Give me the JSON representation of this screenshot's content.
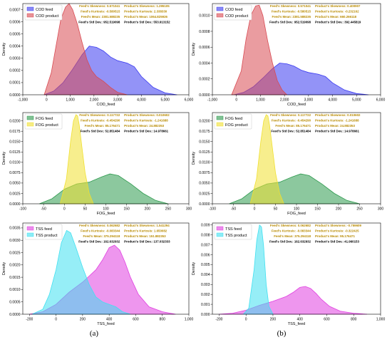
{
  "captions": [
    "(a)",
    "(b)"
  ],
  "chart_data": [
    {
      "type": "area",
      "xlabel": "COD_feed",
      "ylabel": "Density",
      "xlim": [
        -1000,
        6000
      ],
      "ylim": [
        0,
        0.00075
      ],
      "xticks": [
        -1000,
        0,
        1000,
        2000,
        3000,
        4000,
        5000,
        6000
      ],
      "xticklabels": [
        "-1,000",
        "0",
        "1,000",
        "2,000",
        "3,000",
        "4,000",
        "5,000",
        "6,000"
      ],
      "yticks": [
        0,
        0.0001,
        0.0002,
        0.0003,
        0.0004,
        0.0005,
        0.0006,
        0.0007
      ],
      "yticklabels": [
        "0.0000",
        "0.0001",
        "0.0002",
        "0.0003",
        "0.0004",
        "0.0005",
        "0.0006",
        "0.0007"
      ],
      "legend": "upper-left",
      "series": [
        {
          "name": "COD feed",
          "color": "#3a3af0",
          "x": [
            -100,
            300,
            700,
            1100,
            1500,
            1800,
            2100,
            2400,
            2700,
            3000,
            3400,
            3700,
            4000,
            4500,
            5000,
            5500
          ],
          "y": [
            0,
            3e-05,
            0.0001,
            0.00021,
            0.00033,
            0.0004,
            0.00039,
            0.00036,
            0.00031,
            0.00028,
            0.00026,
            0.00023,
            0.00015,
            6e-05,
            1.5e-05,
            0
          ]
        },
        {
          "name": "COD product",
          "color": "#d84a52",
          "x": [
            -100,
            200,
            400,
            600,
            800,
            950,
            1100,
            1300,
            1500,
            1700,
            1900,
            2100,
            2400,
            2700,
            3000,
            3400
          ],
          "y": [
            0,
            0.00018,
            0.0004,
            0.00062,
            0.00072,
            0.00075,
            0.0007,
            0.00058,
            0.00043,
            0.00029,
            0.0002,
            0.00015,
            0.00011,
            6e-05,
            2e-05,
            0
          ]
        }
      ],
      "stats": [
        {
          "feed": "Feed's Skewness: 0.571041",
          "product": "Product's Skewness: 1.295105"
        },
        {
          "feed": "Feed's Kurtosis: -0.580515",
          "product": "Product's Kurtosis: 2.338330"
        },
        {
          "feed": "Feed's Mean: 2381.588235",
          "product": "Product's Mean: 1064.825926"
        },
        {
          "feed": "Feed's Std Dev.: 952.519098",
          "product": "Product's Std Dev.: 553.913152"
        }
      ]
    },
    {
      "type": "area",
      "xlabel": "COD_feed",
      "ylabel": "Density",
      "xlim": [
        -1000,
        6000
      ],
      "ylim": [
        0,
        0.00115
      ],
      "xticks": [
        -1000,
        0,
        1000,
        2000,
        3000,
        4000,
        5000,
        6000
      ],
      "xticklabels": [
        "-1,000",
        "0",
        "1,000",
        "2,000",
        "3,000",
        "4,000",
        "5,000",
        "6,000"
      ],
      "yticks": [
        0,
        0.0002,
        0.0004,
        0.0006,
        0.0008,
        0.001
      ],
      "yticklabels": [
        "0.0000",
        "0.0002",
        "0.0004",
        "0.0006",
        "0.0008",
        "0.0010"
      ],
      "legend": "upper-left",
      "series": [
        {
          "name": "COD feed",
          "color": "#3a3af0",
          "x": [
            -100,
            300,
            700,
            1100,
            1500,
            1800,
            2100,
            2400,
            2700,
            3000,
            3400,
            3700,
            4000,
            4500,
            5000,
            5500
          ],
          "y": [
            0,
            3e-05,
            0.0001,
            0.00021,
            0.00033,
            0.0004,
            0.00039,
            0.00036,
            0.00031,
            0.00028,
            0.00026,
            0.00023,
            0.00015,
            6e-05,
            1.5e-05,
            0
          ]
        },
        {
          "name": "COD product",
          "color": "#d84a52",
          "x": [
            -200,
            200,
            400,
            600,
            800,
            950,
            1100,
            1300,
            1500,
            1700,
            1900,
            2100
          ],
          "y": [
            0,
            0.0003,
            0.0007,
            0.001,
            0.00112,
            0.00113,
            0.001,
            0.00068,
            0.0004,
            0.00018,
            6e-05,
            0
          ]
        }
      ],
      "stats": [
        {
          "feed": "Feed's Skewness: 0.571041",
          "product": "Product's Skewness: 0.400907"
        },
        {
          "feed": "Feed's Kurtosis: -0.580515",
          "product": "Product's Kurtosis: -0.232162"
        },
        {
          "feed": "Feed's Mean: 2381.588235",
          "product": "Product's Mean: 660.266118"
        },
        {
          "feed": "Feed's Std Dev.: 952.519098",
          "product": "Product's Std Dev.: 392.445819"
        }
      ]
    },
    {
      "type": "area",
      "xlabel": "FOG_feed",
      "ylabel": "Density",
      "xlim": [
        -100,
        300
      ],
      "ylim": [
        0,
        0.022
      ],
      "xticks": [
        -100,
        -50,
        0,
        50,
        100,
        150,
        200,
        250,
        300
      ],
      "xticklabels": [
        "-100",
        "-50",
        "0",
        "50",
        "100",
        "150",
        "200",
        "250",
        "300"
      ],
      "yticks": [
        0,
        0.0025,
        0.005,
        0.0075,
        0.01,
        0.0125,
        0.015,
        0.0175,
        0.02
      ],
      "yticklabels": [
        "0.0000",
        "0.0025",
        "0.0050",
        "0.0075",
        "0.0100",
        "0.0125",
        "0.0150",
        "0.0175",
        "0.0200"
      ],
      "legend": "upper-left",
      "series": [
        {
          "name": "FOG feed",
          "color": "#2e9a4e",
          "x": [
            -60,
            -30,
            0,
            30,
            60,
            90,
            110,
            130,
            160,
            190,
            220,
            250
          ],
          "y": [
            0,
            0.0012,
            0.0035,
            0.0048,
            0.0052,
            0.0065,
            0.0072,
            0.0068,
            0.0048,
            0.0025,
            0.0008,
            0
          ]
        },
        {
          "name": "FOG product",
          "color": "#f0e030",
          "x": [
            -10,
            5,
            15,
            22,
            28,
            32,
            36,
            42,
            50,
            60,
            70
          ],
          "y": [
            0,
            0.006,
            0.015,
            0.02,
            0.0215,
            0.0212,
            0.019,
            0.014,
            0.0075,
            0.0025,
            0
          ]
        }
      ],
      "stats": [
        {
          "feed": "Feed's Skewness: 0.117722",
          "product": "Product's Skewness: 0.010602"
        },
        {
          "feed": "Feed's Kurtosis: -0.454290",
          "product": "Product's Kurtosis: -1.241688"
        },
        {
          "feed": "Feed's Mean: 85.176471",
          "product": "Product's Mean: 24.882353"
        },
        {
          "feed": "Feed's Std Dev.: 52.851484",
          "product": "Product's Std Dev.: 14.978661"
        }
      ]
    },
    {
      "type": "area",
      "xlabel": "FOG_feed",
      "ylabel": "Density",
      "xlim": [
        -100,
        300
      ],
      "ylim": [
        0,
        0.022
      ],
      "xticks": [
        -100,
        -50,
        0,
        50,
        100,
        150,
        200,
        250,
        300
      ],
      "xticklabels": [
        "-100",
        "-50",
        "0",
        "50",
        "100",
        "150",
        "200",
        "250",
        "300"
      ],
      "yticks": [
        0,
        0.0025,
        0.005,
        0.0075,
        0.01,
        0.0125,
        0.015,
        0.0175,
        0.02
      ],
      "yticklabels": [
        "0.0000",
        "0.0025",
        "0.0050",
        "0.0075",
        "0.0100",
        "0.0125",
        "0.0150",
        "0.0175",
        "0.0200"
      ],
      "legend": "upper-left",
      "series": [
        {
          "name": "FOG feed",
          "color": "#2e9a4e",
          "x": [
            -60,
            -30,
            0,
            30,
            60,
            90,
            110,
            130,
            160,
            190,
            220,
            250
          ],
          "y": [
            0,
            0.0012,
            0.0035,
            0.0048,
            0.0052,
            0.0065,
            0.0072,
            0.0068,
            0.0048,
            0.0025,
            0.0008,
            0
          ]
        },
        {
          "name": "FOG product",
          "color": "#f0e030",
          "x": [
            -10,
            5,
            15,
            22,
            28,
            32,
            36,
            42,
            50,
            60,
            70
          ],
          "y": [
            0,
            0.006,
            0.015,
            0.02,
            0.0215,
            0.0212,
            0.019,
            0.014,
            0.0075,
            0.0025,
            0
          ]
        }
      ],
      "stats": [
        {
          "feed": "Feed's Skewness: 0.117722",
          "product": "Product's Skewness: 0.010602"
        },
        {
          "feed": "Feed's Kurtosis: -0.454290",
          "product": "Product's Kurtosis: -1.241688"
        },
        {
          "feed": "Feed's Mean: 85.176471",
          "product": "Product's Mean: 24.882353"
        },
        {
          "feed": "Feed's Std Dev.: 52.851484",
          "product": "Product's Std Dev.: 14.978661"
        }
      ]
    },
    {
      "type": "area",
      "xlabel": "TSS_feed",
      "ylabel": "Density",
      "xlim": [
        -250,
        1000
      ],
      "ylim": [
        0,
        0.0037
      ],
      "xticks": [
        -200,
        0,
        200,
        400,
        600,
        800,
        1000
      ],
      "xticklabels": [
        "-200",
        "0",
        "200",
        "400",
        "600",
        "800",
        "1,000"
      ],
      "yticks": [
        0,
        0.0005,
        0.001,
        0.0015,
        0.002,
        0.0025,
        0.003,
        0.0035
      ],
      "yticklabels": [
        "0.0000",
        "0.0005",
        "0.0010",
        "0.0015",
        "0.0020",
        "0.0025",
        "0.0030",
        "0.0035"
      ],
      "legend": "upper-left",
      "series": [
        {
          "name": "TSS feed",
          "color": "#e040e0",
          "x": [
            -200,
            -100,
            0,
            100,
            200,
            300,
            350,
            400,
            440,
            480,
            520,
            560,
            620,
            700,
            800,
            900
          ],
          "y": [
            0,
            0.0001,
            0.0004,
            0.0009,
            0.0013,
            0.0018,
            0.0022,
            0.0027,
            0.0028,
            0.0026,
            0.0021,
            0.0015,
            0.0008,
            0.0003,
            0.0001,
            0
          ]
        },
        {
          "name": "TSS product",
          "color": "#40e0f0",
          "x": [
            -180,
            -100,
            -50,
            0,
            40,
            80,
            110,
            150,
            200,
            250,
            300,
            350,
            400,
            450,
            500,
            560
          ],
          "y": [
            0,
            0.0002,
            0.0008,
            0.0018,
            0.0029,
            0.0034,
            0.0033,
            0.0027,
            0.0019,
            0.0012,
            0.0007,
            0.0005,
            0.0004,
            0.0003,
            0.0001,
            0
          ]
        }
      ],
      "stats": [
        {
          "feed": "Feed's Skewness: 0.062682",
          "product": "Product's Skewness: 1.541294"
        },
        {
          "feed": "Feed's Kurtosis: -0.083344",
          "product": "Product's Kurtosis: 1.650082"
        },
        {
          "feed": "Feed's Mean: 375.294118",
          "product": "Product's Mean: 151.882353"
        },
        {
          "feed": "Feed's Std Dev.: 162.632932",
          "product": "Product's Std Dev.: 137.032333"
        }
      ]
    },
    {
      "type": "area",
      "xlabel": "TSS_feed",
      "ylabel": "Density",
      "xlim": [
        -250,
        1000
      ],
      "ylim": [
        0,
        0.0092
      ],
      "xticks": [
        -200,
        0,
        200,
        400,
        600,
        800,
        1000
      ],
      "xticklabels": [
        "-200",
        "0",
        "200",
        "400",
        "600",
        "800",
        "1,000"
      ],
      "yticks": [
        0,
        0.001,
        0.002,
        0.003,
        0.004,
        0.005,
        0.006,
        0.007,
        0.008,
        0.009
      ],
      "yticklabels": [
        "0.000",
        "0.001",
        "0.002",
        "0.003",
        "0.004",
        "0.005",
        "0.006",
        "0.007",
        "0.008",
        "0.009"
      ],
      "legend": "upper-left",
      "series": [
        {
          "name": "TSS feed",
          "color": "#e040e0",
          "x": [
            -200,
            -100,
            0,
            100,
            200,
            300,
            350,
            400,
            440,
            480,
            520,
            560,
            620,
            700,
            800,
            900
          ],
          "y": [
            0,
            0.0001,
            0.0004,
            0.0009,
            0.0013,
            0.0018,
            0.0022,
            0.0027,
            0.0028,
            0.0026,
            0.0021,
            0.0015,
            0.0008,
            0.0003,
            0.0001,
            0
          ]
        },
        {
          "name": "TSS product",
          "color": "#40e0f0",
          "x": [
            -20,
            20,
            60,
            80,
            100,
            115,
            130,
            150,
            170,
            200
          ],
          "y": [
            0,
            0.0006,
            0.0045,
            0.0075,
            0.009,
            0.0088,
            0.007,
            0.003,
            0.0008,
            0
          ]
        }
      ],
      "stats": [
        {
          "feed": "Feed's Skewness: 0.062682",
          "product": "Product's Skewness: -0.759609"
        },
        {
          "feed": "Feed's Kurtosis: -0.083344",
          "product": "Product's Kurtosis: -0.322425"
        },
        {
          "feed": "Feed's Mean: 375.294118",
          "product": "Product's Mean: 95.176471"
        },
        {
          "feed": "Feed's Std Dev.: 162.632932",
          "product": "Product's Std Dev.: 41.960153"
        }
      ]
    }
  ]
}
